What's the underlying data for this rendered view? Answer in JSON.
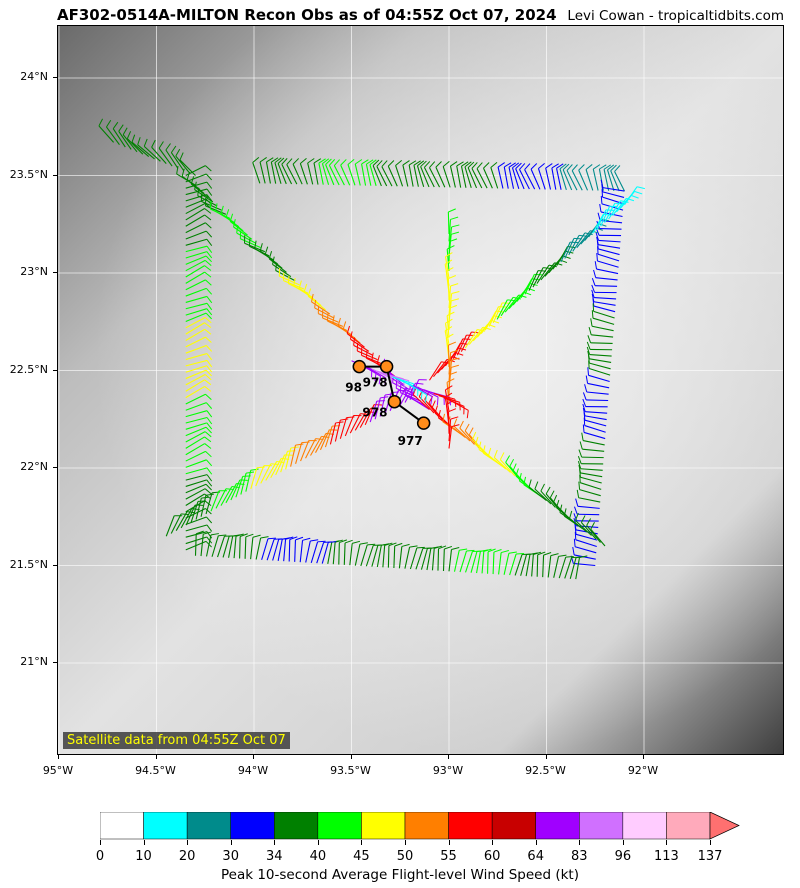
{
  "header": {
    "title": "AF302-0514A-MILTON Recon Obs as of 04:55Z Oct 07, 2024",
    "credit": "Levi Cowan - tropicaltidbits.com"
  },
  "map": {
    "satellite_note": "Satellite data from 04:55Z Oct 07",
    "lat_labels": [
      "24°N",
      "23.5°N",
      "23°N",
      "22.5°N",
      "22°N",
      "21.5°N",
      "21°N"
    ],
    "lon_labels": [
      "95°W",
      "94.5°W",
      "94°W",
      "93.5°W",
      "93°W",
      "92.5°W",
      "92°W"
    ],
    "pressure_obs": [
      {
        "label": "98",
        "lon": -93.46,
        "lat": 22.52
      },
      {
        "label": "978",
        "lon": -93.32,
        "lat": 22.52
      },
      {
        "label": "978",
        "lon": -93.28,
        "lat": 22.34
      },
      {
        "label": "977",
        "lon": -93.13,
        "lat": 22.23
      }
    ],
    "colors": {
      "track": "#000000",
      "marker_fill": "#ff8c1a"
    }
  },
  "colorbar": {
    "title": "Peak 10-second Average Flight-level Wind Speed (kt)",
    "ticks": [
      "0",
      "10",
      "20",
      "30",
      "34",
      "40",
      "45",
      "50",
      "55",
      "60",
      "64",
      "83",
      "96",
      "113",
      "137"
    ],
    "colors": [
      "#ffffff",
      "#00ffff",
      "#008b8b",
      "#0000ff",
      "#008000",
      "#00ff00",
      "#ffff00",
      "#ff7f00",
      "#ff0000",
      "#c80000",
      "#a000ff",
      "#d070ff",
      "#ffccff",
      "#ffaabb"
    ],
    "extend_color": "#ff7070"
  }
}
